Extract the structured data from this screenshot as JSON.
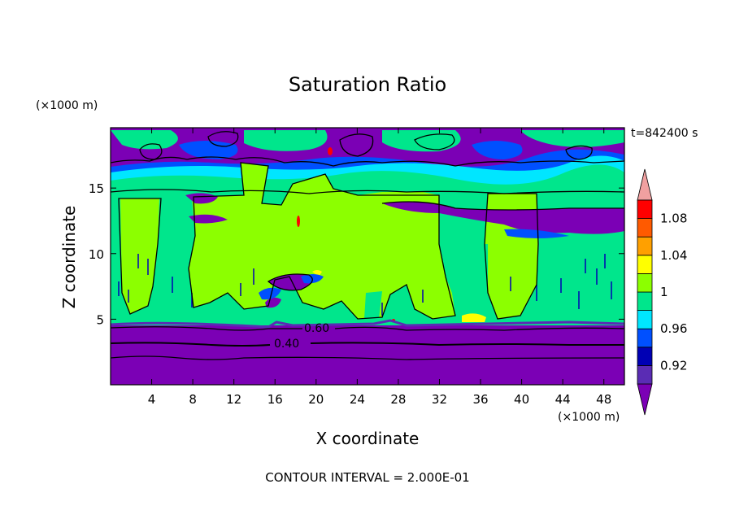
{
  "chart_data": {
    "type": "heatmap",
    "title": "Saturation Ratio",
    "xlabel": "X coordinate",
    "ylabel": "Z coordinate",
    "x_unit": "(×1000 m)",
    "z_unit": "(×1000 m)",
    "time_label": "t=842400 s",
    "footer": "CONTOUR INTERVAL = 2.000E-01",
    "xlim": [
      0,
      50
    ],
    "ylim": [
      0,
      19.6
    ],
    "x_ticks": [
      4,
      8,
      12,
      16,
      20,
      24,
      28,
      32,
      36,
      40,
      44,
      48
    ],
    "y_ticks": [
      5,
      10,
      15
    ],
    "contour_lines": [
      "0.60",
      "0.40"
    ],
    "colorbar": {
      "labels": [
        "1.08",
        "1.04",
        "1",
        "0.96",
        "0.92"
      ],
      "levels": [
        {
          "from": null,
          "to": 0.9,
          "color": "#7b00b5"
        },
        {
          "from": 0.9,
          "to": 0.92,
          "color": "#5a2cb4"
        },
        {
          "from": 0.92,
          "to": 0.94,
          "color": "#0000b4"
        },
        {
          "from": 0.94,
          "to": 0.96,
          "color": "#0050ff"
        },
        {
          "from": 0.96,
          "to": 0.98,
          "color": "#00e6ff"
        },
        {
          "from": 0.98,
          "to": 1.0,
          "color": "#00e68c"
        },
        {
          "from": 1.0,
          "to": 1.02,
          "color": "#8cff00"
        },
        {
          "from": 1.02,
          "to": 1.04,
          "color": "#ffff00"
        },
        {
          "from": 1.04,
          "to": 1.06,
          "color": "#ffa000"
        },
        {
          "from": 1.06,
          "to": 1.08,
          "color": "#ff5a00"
        },
        {
          "from": 1.08,
          "to": 1.1,
          "color": "#ff0000"
        },
        {
          "from": 1.1,
          "to": null,
          "color": "#f0a0a0"
        }
      ]
    }
  }
}
